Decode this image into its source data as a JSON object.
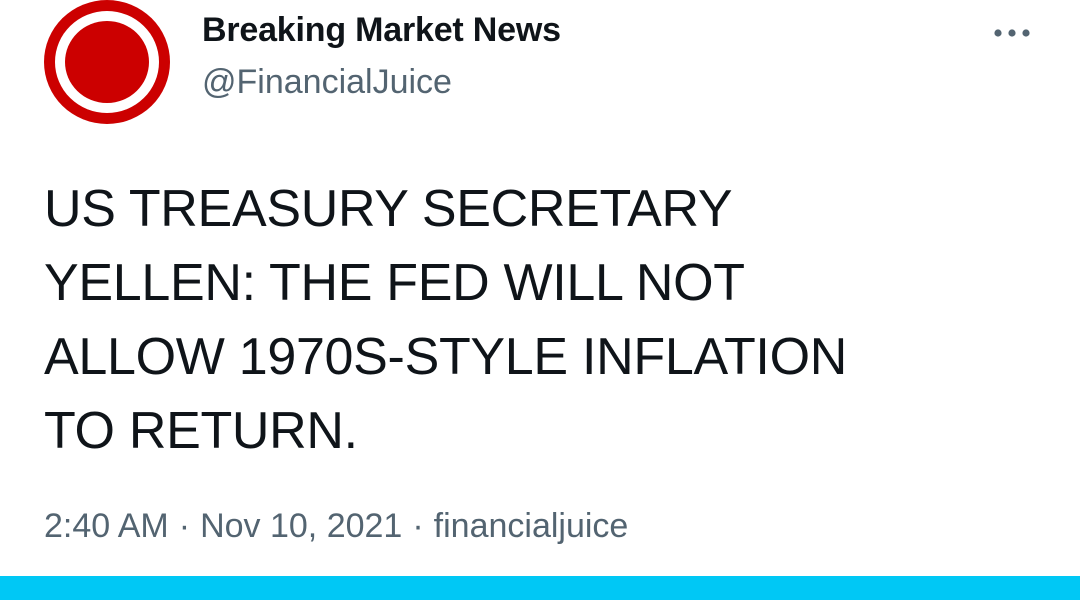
{
  "header": {
    "avatar_icon": "red-ring-logo-icon",
    "display_name": "Breaking Market News",
    "handle": "@FinancialJuice",
    "more_icon": "more-options-icon"
  },
  "tweet": {
    "text": "US TREASURY SECRETARY\nYELLEN: THE FED WILL NOT\nALLOW 1970S-STYLE INFLATION\nTO RETURN."
  },
  "meta": {
    "time": "2:40 AM",
    "separator": "·",
    "date": "Nov 10, 2021",
    "source": "financialjuice"
  },
  "colors": {
    "logo_red": "#cc0000",
    "text_primary": "#0f1419",
    "text_secondary": "#536471",
    "bottom_bar": "#00c8f5"
  }
}
